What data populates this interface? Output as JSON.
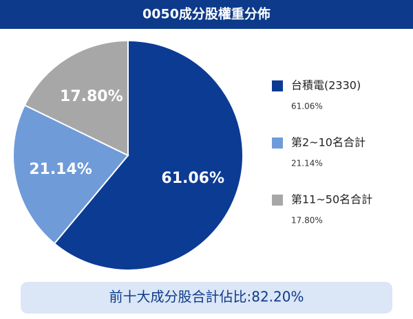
{
  "chart_data": {
    "type": "pie",
    "title": "0050成分股權重分佈",
    "categories": [
      "台積電(2330)",
      "第2~10名合計",
      "第11~50名合計"
    ],
    "values": [
      61.06,
      21.14,
      17.8
    ],
    "value_labels": [
      "61.06%",
      "21.14%",
      "17.80%"
    ],
    "colors": [
      "#0c3b94",
      "#6f9bd9",
      "#a7a7a7"
    ],
    "legend": "right",
    "annotation": "前十大成分股合計佔比:82.20%"
  }
}
